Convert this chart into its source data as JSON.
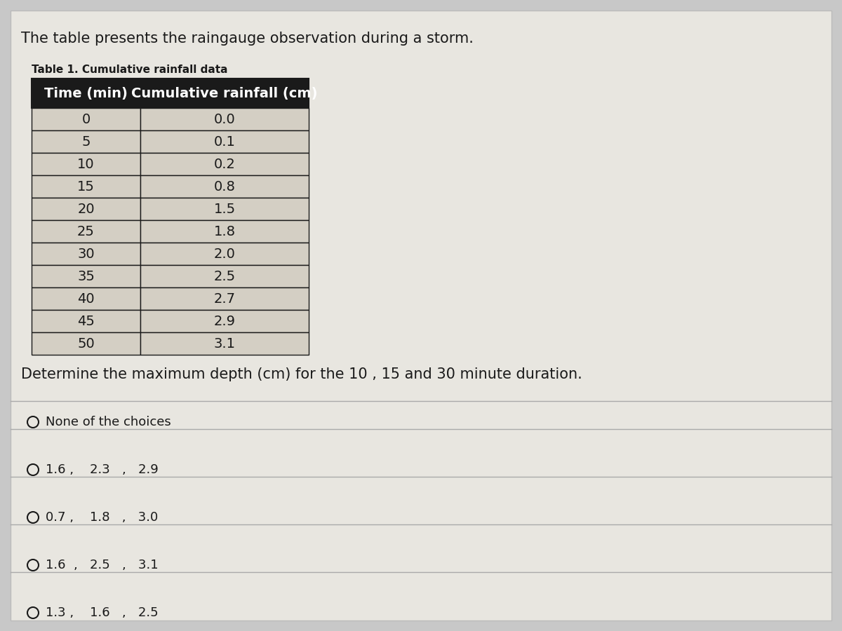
{
  "intro_text": "The table presents the raingauge observation during a storm.",
  "table_title": "Table 1. Cumulative rainfall data",
  "col_headers": [
    "Time (min)",
    "Cumulative rainfall (cm)"
  ],
  "table_data": [
    [
      "0",
      "0.0"
    ],
    [
      "5",
      "0.1"
    ],
    [
      "10",
      "0.2"
    ],
    [
      "15",
      "0.8"
    ],
    [
      "20",
      "1.5"
    ],
    [
      "25",
      "1.8"
    ],
    [
      "30",
      "2.0"
    ],
    [
      "35",
      "2.5"
    ],
    [
      "40",
      "2.7"
    ],
    [
      "45",
      "2.9"
    ],
    [
      "50",
      "3.1"
    ]
  ],
  "question_text": "Determine the maximum depth (cm) for the 10 , 15 and 30 minute duration.",
  "choices": [
    [
      "None of the choices"
    ],
    [
      "1.6 ,",
      "2.3",
      ",",
      "2.9"
    ],
    [
      "0.7 ,",
      "1.8",
      ",",
      "3.0"
    ],
    [
      "1.6  ,",
      "2.5",
      ",",
      "3.1"
    ],
    [
      "1.3 ,",
      "1.6",
      ",",
      "2.5"
    ]
  ],
  "bg_color": "#c8c8c8",
  "panel_color": "#e8e6e0",
  "table_header_bg": "#1a1a1a",
  "table_header_fg": "#ffffff",
  "table_row_bg": "#d4cfc4",
  "table_border": "#1a1a1a",
  "separator_color": "#aaaaaa",
  "text_color": "#1a1a1a",
  "intro_fontsize": 15,
  "table_title_fontsize": 11,
  "header_fontsize": 14,
  "table_data_fontsize": 14,
  "question_fontsize": 15,
  "choice_fontsize": 13
}
